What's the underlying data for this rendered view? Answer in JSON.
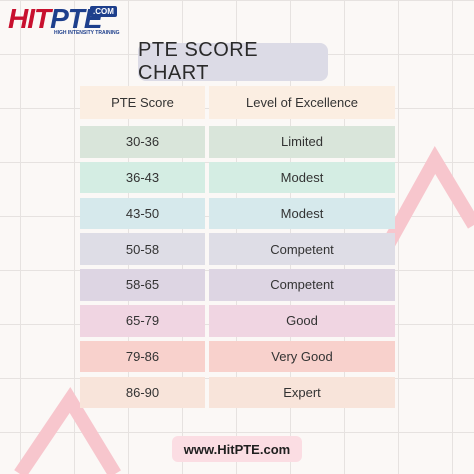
{
  "logo": {
    "hit": "HIT",
    "pte": "PTE",
    "dotcom": ".COM",
    "tagline": "HIGH INTENSITY TRAINING"
  },
  "title": "PTE SCORE CHART",
  "table": {
    "header": {
      "score": "PTE Score",
      "level": "Level of Excellence",
      "color": "#fbeee2"
    },
    "rows": [
      {
        "score": "30-36",
        "level": "Limited",
        "color": "#d9e5da"
      },
      {
        "score": "36-43",
        "level": "Modest",
        "color": "#d4ede3"
      },
      {
        "score": "43-50",
        "level": "Modest",
        "color": "#d6e9ec"
      },
      {
        "score": "50-58",
        "level": "Competent",
        "color": "#dedde6"
      },
      {
        "score": "58-65",
        "level": "Competent",
        "color": "#ddd5e3"
      },
      {
        "score": "65-79",
        "level": "Good",
        "color": "#f0d5e2"
      },
      {
        "score": "79-86",
        "level": "Very Good",
        "color": "#f8d1cc"
      },
      {
        "score": "86-90",
        "level": "Expert",
        "color": "#f8e4da"
      }
    ]
  },
  "footer": {
    "url": "www.HitPTE.com"
  },
  "colors": {
    "brand_red": "#c8102e",
    "brand_blue": "#1e3f8c",
    "zigzag": "#f7c6cd"
  }
}
